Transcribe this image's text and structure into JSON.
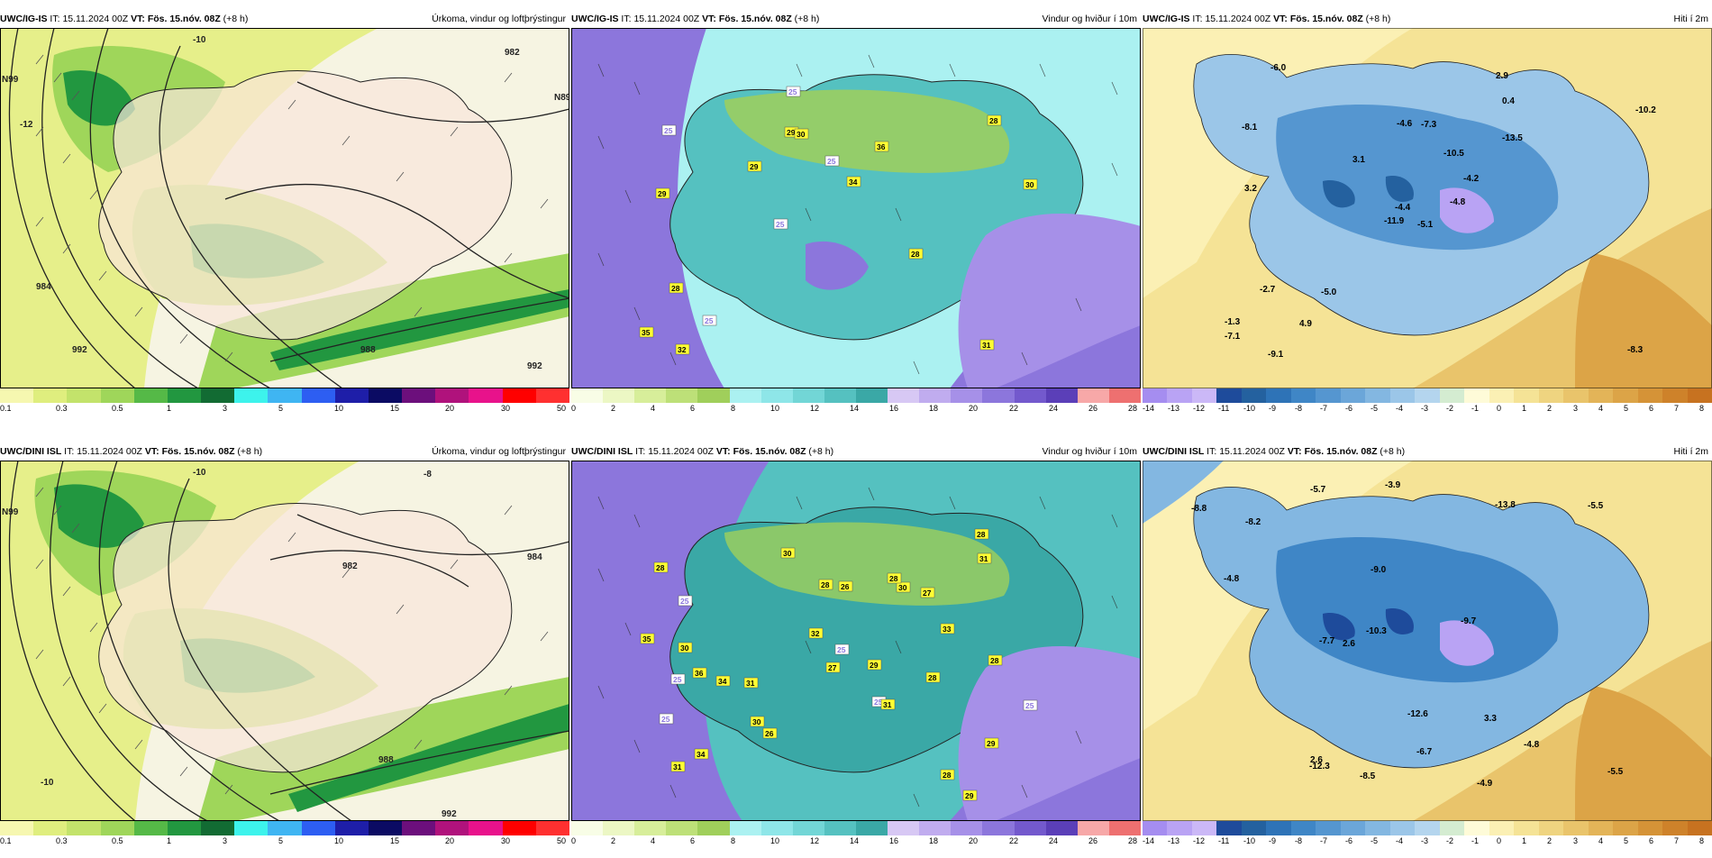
{
  "rows": [
    {
      "model": "UWC/IG-IS",
      "it_label": "IT:",
      "it_value": "15.11.2024 00Z",
      "vt_label": "VT:",
      "vt_value": "Fös. 15.nóv. 08Z",
      "lead": "(+8 h)"
    },
    {
      "model": "UWC/DINI ISL",
      "it_label": "IT:",
      "it_value": "15.11.2024 00Z",
      "vt_label": "VT:",
      "vt_value": "Fös. 15.nóv. 08Z",
      "lead": "(+8 h)"
    }
  ],
  "panel_titles": {
    "precip": "Úrkoma, vindur og loftþrýstingur",
    "wind": "Vindur og hviður í 10m",
    "temp": "Hiti í 2m"
  },
  "colorbars": {
    "precip": {
      "colors": [
        "#f6f7b0",
        "#dfee7e",
        "#c3e36b",
        "#9fd65a",
        "#55b947",
        "#229740",
        "#126b33",
        "#3df3ec",
        "#3fb5f2",
        "#2d5ef2",
        "#1e1ea8",
        "#0b0b63",
        "#6c0f7c",
        "#b0127c",
        "#e8128b",
        "#ff0000",
        "#ff3030"
      ],
      "ticks": [
        "0.1",
        "0.3",
        "0.5",
        "1",
        "3",
        "5",
        "10",
        "15",
        "20",
        "30",
        "50"
      ]
    },
    "wind": {
      "colors": [
        "#f8fde6",
        "#ecf7c4",
        "#d7ee9a",
        "#bde078",
        "#a0cf5b",
        "#abf1f1",
        "#8ee6e8",
        "#72d6d6",
        "#55c1c0",
        "#3aa8a6",
        "#d7c8f4",
        "#c0acef",
        "#a690e8",
        "#8c76dc",
        "#7359cd",
        "#5b3fb8",
        "#f7a8a8",
        "#ee7070"
      ],
      "ticks": [
        "0",
        "2",
        "4",
        "6",
        "8",
        "10",
        "12",
        "14",
        "16",
        "18",
        "20",
        "22",
        "24",
        "26",
        "28"
      ]
    },
    "temp": {
      "colors": [
        "#a58df0",
        "#b9a3f4",
        "#cbb8f7",
        "#1e4b9b",
        "#24619f",
        "#2e73b7",
        "#3f86c6",
        "#5596d0",
        "#6ba6d9",
        "#83b7e1",
        "#9bc6e8",
        "#b4d5ee",
        "#d4ecd1",
        "#fefbd8",
        "#fbf0b4",
        "#f5e396",
        "#efd480",
        "#e9c46b",
        "#e3b458",
        "#dca447",
        "#d59337",
        "#ce822a",
        "#c77220"
      ],
      "ticks": [
        "-14",
        "-13",
        "-12",
        "-11",
        "-10",
        "-9",
        "-8",
        "-7",
        "-6",
        "-5",
        "-4",
        "-3",
        "-2",
        "-1",
        "0",
        "1",
        "2",
        "3",
        "4",
        "5",
        "6",
        "7",
        "8"
      ]
    }
  },
  "gust_labels": {
    "top": [
      "31",
      "29",
      "28",
      "25",
      "36",
      "32",
      "29",
      "25",
      "28",
      "29",
      "35",
      "25",
      "30",
      "34",
      "28",
      "25",
      "25",
      "30"
    ],
    "bottom": [
      "29",
      "36",
      "25",
      "28",
      "29",
      "25",
      "34",
      "31",
      "27",
      "28",
      "30",
      "28",
      "26",
      "30",
      "29",
      "25",
      "28",
      "25",
      "35",
      "31",
      "28",
      "26",
      "33",
      "25",
      "28",
      "30",
      "34",
      "27",
      "32",
      "31",
      "31",
      "25",
      "30",
      "28"
    ]
  },
  "temp_labels": {
    "top": [
      "-5.1",
      "-8.1",
      "-4.4",
      "-1.3",
      "-4.2",
      "-5.0",
      "2.9",
      "-7.3",
      "0.4",
      "-4.8",
      "-6.0",
      "-8.3",
      "3.2",
      "-10.2",
      "-11.9",
      "-13.5",
      "-9.1",
      "-4.6",
      "-10.5",
      "-2.7",
      "3.1",
      "-7.1",
      "4.9"
    ],
    "bottom": [
      "-8.5",
      "-4.9",
      "2.6",
      "-4.8",
      "-5.7",
      "-8.2",
      "-7.7",
      "-5.5",
      "-3.9",
      "-9.0",
      "-5.5",
      "-6.7",
      "-10.3",
      "-12.6",
      "-13.8",
      "-9.7",
      "-4.8",
      "-12.3",
      "2.6",
      "-8.8",
      "3.3"
    ]
  },
  "pressure_labels": {
    "top": [
      "-10",
      "982",
      "-12",
      "992",
      "984",
      "988",
      "992",
      "N99",
      "N89"
    ],
    "bottom": [
      "-10",
      "982",
      "-8",
      "984",
      "988",
      "992",
      "N99",
      "-10"
    ]
  }
}
